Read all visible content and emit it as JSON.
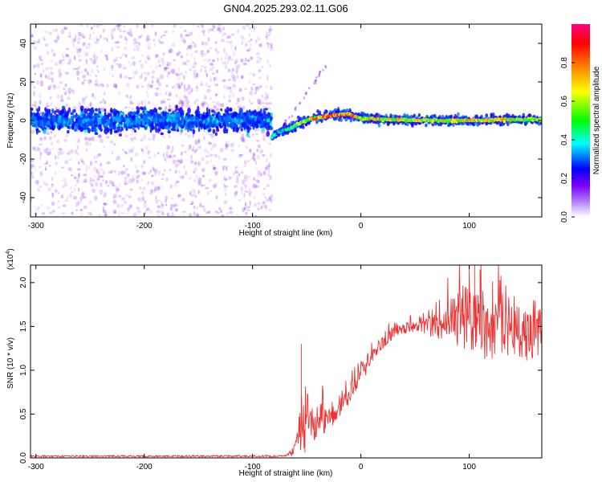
{
  "title": "GN04.2025.293.02.11.G06",
  "chart_data": [
    {
      "type": "heatmap",
      "xlabel": "Height of straight line (km)",
      "ylabel": "Frequency (Hz)",
      "xlim": [
        -305,
        167
      ],
      "ylim": [
        -50,
        50
      ],
      "xticks": [
        -300,
        -200,
        -100,
        0,
        100
      ],
      "xtick_labels": [
        "-300",
        "-200",
        "-100",
        "0",
        "100"
      ],
      "yticks": [
        -40,
        -20,
        0,
        20,
        40
      ],
      "ytick_labels": [
        "-40",
        "-20",
        "0",
        "20",
        "40"
      ],
      "grid": false,
      "colorbar": {
        "label": "Normalized spectral amplitude",
        "range": [
          0,
          1
        ],
        "ticks": [
          0.0,
          0.2,
          0.4,
          0.6,
          0.8
        ],
        "tick_labels": [
          "0.0",
          "0.2",
          "0.4",
          "0.6",
          "0.8"
        ],
        "colormap": [
          "#ffffff",
          "#7f00ff",
          "#0000ff",
          "#00ffff",
          "#00ff00",
          "#ffff00",
          "#ff8000",
          "#ff0000",
          "#ff0080"
        ]
      },
      "noise_region_x": [
        -305,
        -82
      ],
      "noise_band_hz": [
        -10,
        10
      ],
      "ridge": {
        "x": [
          -82,
          -75,
          -65,
          -55,
          -45,
          -35,
          -25,
          -10,
          0,
          30,
          60,
          100,
          140,
          167
        ],
        "y": [
          -8,
          -6,
          -4,
          -1,
          1,
          2,
          3,
          3,
          1,
          0.5,
          0,
          0,
          0.5,
          0.5
        ],
        "amplitude": [
          0.45,
          0.5,
          0.55,
          0.7,
          0.85,
          0.95,
          1.0,
          0.95,
          0.85,
          0.8,
          0.75,
          0.8,
          0.75,
          0.7
        ]
      },
      "faint_streak": {
        "x": [
          -78,
          -30
        ],
        "y": [
          -8,
          30
        ]
      }
    },
    {
      "type": "line",
      "xlabel": "Height of straight line (km)",
      "ylabel": "SNR (10 * v/v)",
      "y_scale_label": "(x10",
      "y_scale_exp": "4",
      "xlim": [
        -305,
        167
      ],
      "ylim": [
        0,
        2.2
      ],
      "xticks": [
        -300,
        -200,
        -100,
        0,
        100
      ],
      "xtick_labels": [
        "-300",
        "-200",
        "-100",
        "0",
        "100"
      ],
      "yticks": [
        0.0,
        0.5,
        1.0,
        1.5,
        2.0
      ],
      "ytick_labels": [
        "0.0",
        "0.5",
        "1.0",
        "1.5",
        "2.0"
      ],
      "grid": false,
      "color": "#ee3333",
      "envelope": {
        "x": [
          -305,
          -70,
          -62,
          -58,
          -55,
          -52,
          -45,
          -35,
          -25,
          -15,
          -5,
          5,
          15,
          25,
          35,
          45,
          55,
          65,
          75,
          85,
          95,
          105,
          115,
          125,
          135,
          145,
          155,
          167
        ],
        "mean": [
          0.02,
          0.02,
          0.08,
          0.25,
          0.35,
          0.3,
          0.38,
          0.45,
          0.52,
          0.65,
          0.85,
          1.05,
          1.25,
          1.38,
          1.45,
          1.5,
          1.52,
          1.5,
          1.5,
          1.55,
          1.55,
          1.5,
          1.45,
          1.5,
          1.45,
          1.45,
          1.4,
          1.45
        ],
        "spread": [
          0.01,
          0.01,
          0.05,
          0.1,
          0.4,
          0.25,
          0.2,
          0.18,
          0.15,
          0.12,
          0.1,
          0.1,
          0.08,
          0.08,
          0.08,
          0.08,
          0.08,
          0.12,
          0.18,
          0.3,
          0.45,
          0.4,
          0.35,
          0.35,
          0.3,
          0.3,
          0.3,
          0.25
        ]
      },
      "peak_points": [
        {
          "x": -55,
          "y": 1.3
        },
        {
          "x": 100,
          "y": 2.2
        },
        {
          "x": 105,
          "y": 2.2
        },
        {
          "x": 110,
          "y": 2.15
        }
      ]
    }
  ]
}
